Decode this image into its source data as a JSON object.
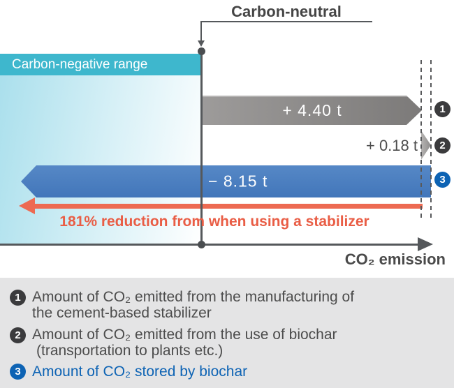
{
  "chart_data": {
    "type": "bar",
    "orientation": "horizontal",
    "unit": "t CO₂",
    "baseline_label": "Carbon-neutral",
    "negative_region_label": "Carbon-negative range",
    "x_axis_label": "CO₂ emission",
    "series": [
      {
        "index": 1,
        "name": "Amount of CO₂ emitted from the manufacturing of the cement-based stabilizer",
        "value": 4.4,
        "display": "+ 4.40 t"
      },
      {
        "index": 2,
        "name": "Amount of CO₂ emitted from the use of biochar (transportation to plants etc.)",
        "value": 0.18,
        "display": "+ 0.18 t"
      },
      {
        "index": 3,
        "name": "Amount of CO₂ stored by biochar",
        "value": -8.15,
        "display": "− 8.15 t"
      }
    ],
    "annotation": "181% reduction from when using a stabilizer",
    "legend_position": "bottom",
    "grid": false
  },
  "header": {
    "carbon_neutral": "Carbon-neutral"
  },
  "region": {
    "label": "Carbon-negative range"
  },
  "arrows": {
    "a1": {
      "label": "+ 4.40 t",
      "badge": "1"
    },
    "a2": {
      "label": "+ 0.18 t",
      "badge": "2"
    },
    "a3": {
      "label": "− 8.15 t",
      "badge": "3"
    }
  },
  "reduction": {
    "label": "181% reduction from when using a stabilizer"
  },
  "axis": {
    "label": "CO₂ emission"
  },
  "legend": {
    "items": [
      {
        "badge": "1",
        "line1": "Amount of CO₂ emitted from the manufacturing of",
        "line2": "the cement-based stabilizer"
      },
      {
        "badge": "2",
        "line1": "Amount of CO₂ emitted from the use of biochar",
        "line2": "(transportation to plants etc.)"
      },
      {
        "badge": "3",
        "line1": "Amount of CO₂ stored by biochar"
      }
    ]
  },
  "colors": {
    "cyan_band": "#3eb7cd",
    "gray_arrow": "#8e8c8b",
    "blue_arrow": "#4a7fc0",
    "red_accent": "#ed6a52",
    "badge_dark": "#3b3b3d",
    "badge_blue": "#0d63b4",
    "line": "#55585b",
    "legend_bg": "#e4e4e5"
  }
}
